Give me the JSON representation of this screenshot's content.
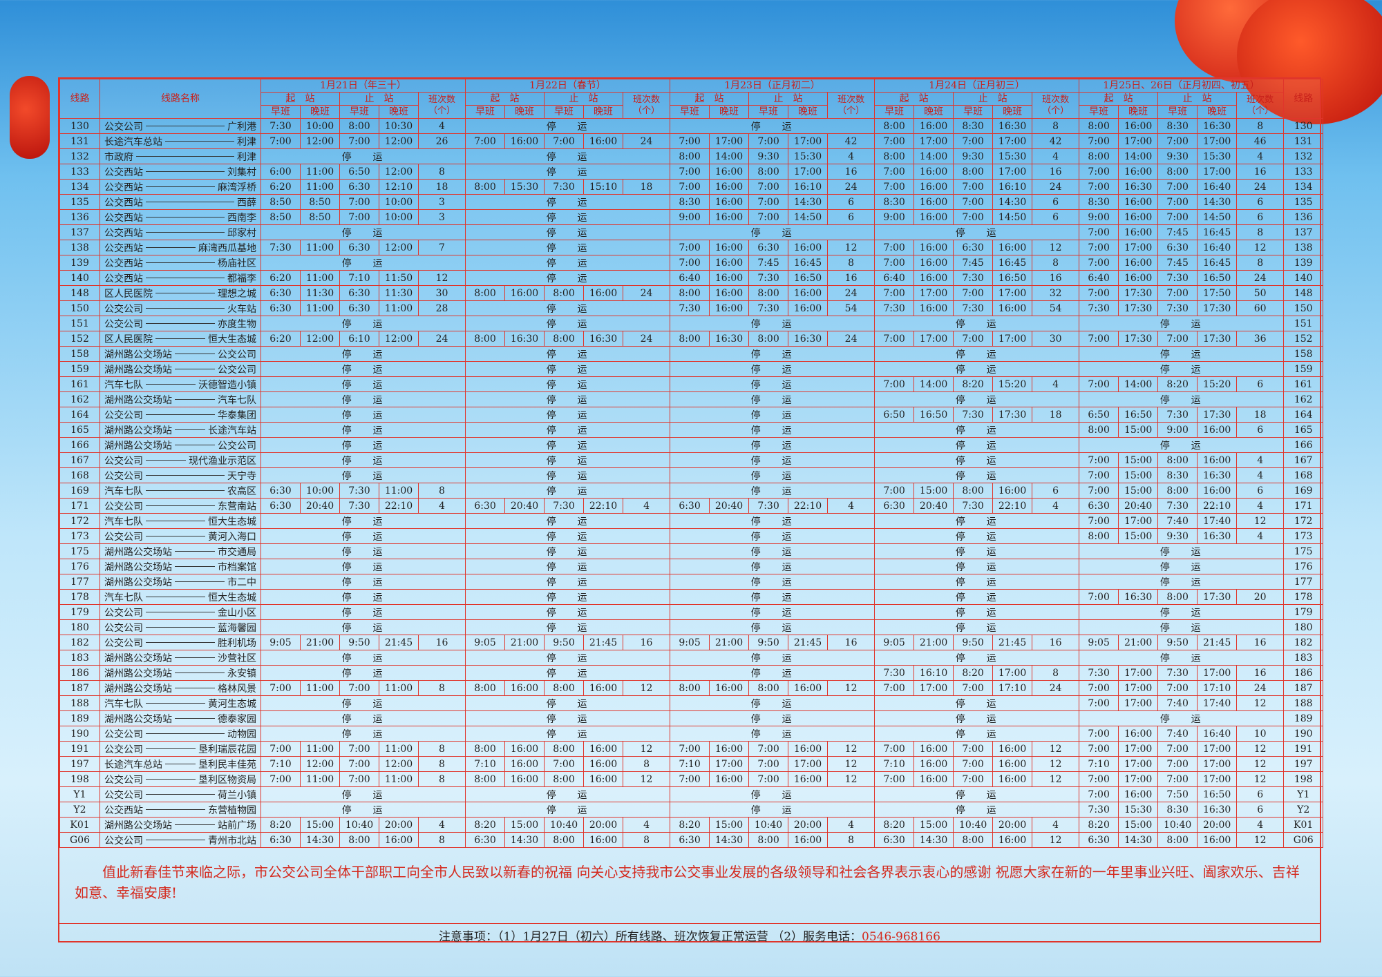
{
  "header": {
    "route": "线路",
    "name": "线路名称",
    "dates": [
      "1月21日（年三十）",
      "1月22日（春节）",
      "1月23日（正月初二）",
      "1月24日（正月初三）",
      "1月25日、26日（正月初四、初五）"
    ],
    "start": "起　站",
    "end": "止　站",
    "count": "班次数（个）",
    "early": "早班",
    "late": "晚班"
  },
  "table": {
    "rows": [
      [
        "130",
        "公交公司",
        "广利港",
        [
          "7:30",
          "10:00",
          "8:00",
          "10:30",
          "4"
        ],
        "停运",
        "停运",
        [
          "8:00",
          "16:00",
          "8:30",
          "16:30",
          "8"
        ],
        [
          "8:00",
          "16:00",
          "8:30",
          "16:30",
          "8"
        ]
      ],
      [
        "131",
        "长途汽车总站",
        "利津",
        [
          "7:00",
          "12:00",
          "7:00",
          "12:00",
          "26"
        ],
        [
          "7:00",
          "16:00",
          "7:00",
          "16:00",
          "24"
        ],
        [
          "7:00",
          "17:00",
          "7:00",
          "17:00",
          "42"
        ],
        [
          "7:00",
          "17:00",
          "7:00",
          "17:00",
          "42"
        ],
        [
          "7:00",
          "17:00",
          "7:00",
          "17:00",
          "46"
        ]
      ],
      [
        "132",
        "市政府",
        "利津",
        "停运",
        "停运",
        [
          "8:00",
          "14:00",
          "9:30",
          "15:30",
          "4"
        ],
        [
          "8:00",
          "14:00",
          "9:30",
          "15:30",
          "4"
        ],
        [
          "8:00",
          "14:00",
          "9:30",
          "15:30",
          "4"
        ]
      ],
      [
        "133",
        "公交西站",
        "刘集村",
        [
          "6:00",
          "11:00",
          "6:50",
          "12:00",
          "8"
        ],
        "停运",
        [
          "7:00",
          "16:00",
          "8:00",
          "17:00",
          "16"
        ],
        [
          "7:00",
          "16:00",
          "8:00",
          "17:00",
          "16"
        ],
        [
          "7:00",
          "16:00",
          "8:00",
          "17:00",
          "16"
        ]
      ],
      [
        "134",
        "公交西站",
        "麻湾浮桥",
        [
          "6:20",
          "11:00",
          "6:30",
          "12:10",
          "18"
        ],
        [
          "8:00",
          "15:30",
          "7:30",
          "15:10",
          "18"
        ],
        [
          "7:00",
          "16:00",
          "7:00",
          "16:10",
          "24"
        ],
        [
          "7:00",
          "16:00",
          "7:00",
          "16:10",
          "24"
        ],
        [
          "7:00",
          "16:30",
          "7:00",
          "16:40",
          "24"
        ]
      ],
      [
        "135",
        "公交西站",
        "西薛",
        [
          "8:50",
          "8:50",
          "7:00",
          "10:00",
          "3"
        ],
        "停运",
        [
          "8:30",
          "16:00",
          "7:00",
          "14:30",
          "6"
        ],
        [
          "8:30",
          "16:00",
          "7:00",
          "14:30",
          "6"
        ],
        [
          "8:30",
          "16:00",
          "7:00",
          "14:30",
          "6"
        ]
      ],
      [
        "136",
        "公交西站",
        "西南李",
        [
          "8:50",
          "8:50",
          "7:00",
          "10:00",
          "3"
        ],
        "停运",
        [
          "9:00",
          "16:00",
          "7:00",
          "14:50",
          "6"
        ],
        [
          "9:00",
          "16:00",
          "7:00",
          "14:50",
          "6"
        ],
        [
          "9:00",
          "16:00",
          "7:00",
          "14:50",
          "6"
        ]
      ],
      [
        "137",
        "公交西站",
        "邱家村",
        "停运",
        "停运",
        "停运",
        "停运",
        [
          "7:00",
          "16:00",
          "7:45",
          "16:45",
          "8"
        ]
      ],
      [
        "138",
        "公交西站",
        "麻湾西瓜基地",
        [
          "7:30",
          "11:00",
          "6:30",
          "12:00",
          "7"
        ],
        "停运",
        [
          "7:00",
          "16:00",
          "6:30",
          "16:00",
          "12"
        ],
        [
          "7:00",
          "16:00",
          "6:30",
          "16:00",
          "12"
        ],
        [
          "7:00",
          "17:00",
          "6:30",
          "16:40",
          "12"
        ]
      ],
      [
        "139",
        "公交西站",
        "杨庙社区",
        "停运",
        "停运",
        [
          "7:00",
          "16:00",
          "7:45",
          "16:45",
          "8"
        ],
        [
          "7:00",
          "16:00",
          "7:45",
          "16:45",
          "8"
        ],
        [
          "7:00",
          "16:00",
          "7:45",
          "16:45",
          "8"
        ]
      ],
      [
        "140",
        "公交西站",
        "都福李",
        [
          "6:20",
          "11:00",
          "7:10",
          "11:50",
          "12"
        ],
        "停运",
        [
          "6:40",
          "16:00",
          "7:30",
          "16:50",
          "16"
        ],
        [
          "6:40",
          "16:00",
          "7:30",
          "16:50",
          "16"
        ],
        [
          "6:40",
          "16:00",
          "7:30",
          "16:50",
          "24"
        ]
      ],
      [
        "148",
        "区人民医院",
        "理想之城",
        [
          "6:30",
          "11:30",
          "6:30",
          "11:30",
          "30"
        ],
        [
          "8:00",
          "16:00",
          "8:00",
          "16:00",
          "24"
        ],
        [
          "8:00",
          "16:00",
          "8:00",
          "16:00",
          "24"
        ],
        [
          "7:00",
          "17:00",
          "7:00",
          "17:00",
          "32"
        ],
        [
          "7:00",
          "17:30",
          "7:00",
          "17:50",
          "50"
        ]
      ],
      [
        "150",
        "公交公司",
        "火车站",
        [
          "6:30",
          "11:00",
          "6:30",
          "11:00",
          "28"
        ],
        "停运",
        [
          "7:30",
          "16:00",
          "7:30",
          "16:00",
          "54"
        ],
        [
          "7:30",
          "16:00",
          "7:30",
          "16:00",
          "54"
        ],
        [
          "7:30",
          "17:30",
          "7:30",
          "17:30",
          "60"
        ]
      ],
      [
        "151",
        "公交公司",
        "亦度生物",
        "停运",
        "停运",
        "停运",
        "停运",
        "停运"
      ],
      [
        "152",
        "区人民医院",
        "恒大生态城",
        [
          "6:20",
          "12:00",
          "6:10",
          "12:00",
          "24"
        ],
        [
          "8:00",
          "16:30",
          "8:00",
          "16:30",
          "24"
        ],
        [
          "8:00",
          "16:30",
          "8:00",
          "16:30",
          "24"
        ],
        [
          "7:00",
          "17:00",
          "7:00",
          "17:00",
          "30"
        ],
        [
          "7:00",
          "17:30",
          "7:00",
          "17:30",
          "36"
        ]
      ],
      [
        "158",
        "湖州路公交场站",
        "公交公司",
        "停运",
        "停运",
        "停运",
        "停运",
        "停运"
      ],
      [
        "159",
        "湖州路公交场站",
        "公交公司",
        "停运",
        "停运",
        "停运",
        "停运",
        "停运"
      ],
      [
        "161",
        "汽车七队",
        "沃德智造小镇",
        "停运",
        "停运",
        "停运",
        [
          "7:00",
          "14:00",
          "8:20",
          "15:20",
          "4"
        ],
        [
          "7:00",
          "14:00",
          "8:20",
          "15:20",
          "6"
        ]
      ],
      [
        "162",
        "湖州路公交场站",
        "汽车七队",
        "停运",
        "停运",
        "停运",
        "停运",
        "停运"
      ],
      [
        "164",
        "公交公司",
        "华泰集团",
        "停运",
        "停运",
        "停运",
        [
          "6:50",
          "16:50",
          "7:30",
          "17:30",
          "18"
        ],
        [
          "6:50",
          "16:50",
          "7:30",
          "17:30",
          "18"
        ]
      ],
      [
        "165",
        "湖州路公交场站",
        "长途汽车站",
        "停运",
        "停运",
        "停运",
        "停运",
        [
          "8:00",
          "15:00",
          "9:00",
          "16:00",
          "6"
        ]
      ],
      [
        "166",
        "湖州路公交场站",
        "公交公司",
        "停运",
        "停运",
        "停运",
        "停运",
        "停运"
      ],
      [
        "167",
        "公交公司",
        "现代渔业示范区",
        "停运",
        "停运",
        "停运",
        "停运",
        [
          "7:00",
          "15:00",
          "8:00",
          "16:00",
          "4"
        ]
      ],
      [
        "168",
        "公交公司",
        "天宁寺",
        "停运",
        "停运",
        "停运",
        "停运",
        [
          "7:00",
          "15:00",
          "8:30",
          "16:30",
          "4"
        ]
      ],
      [
        "169",
        "汽车七队",
        "农高区",
        [
          "6:30",
          "10:00",
          "7:30",
          "11:00",
          "8"
        ],
        "停运",
        "停运",
        [
          "7:00",
          "15:00",
          "8:00",
          "16:00",
          "6"
        ],
        [
          "7:00",
          "15:00",
          "8:00",
          "16:00",
          "6"
        ]
      ],
      [
        "171",
        "公交公司",
        "东营南站",
        [
          "6:30",
          "20:40",
          "7:30",
          "22:10",
          "4"
        ],
        [
          "6:30",
          "20:40",
          "7:30",
          "22:10",
          "4"
        ],
        [
          "6:30",
          "20:40",
          "7:30",
          "22:10",
          "4"
        ],
        [
          "6:30",
          "20:40",
          "7:30",
          "22:10",
          "4"
        ],
        [
          "6:30",
          "20:40",
          "7:30",
          "22:10",
          "4"
        ]
      ],
      [
        "172",
        "汽车七队",
        "恒大生态城",
        "停运",
        "停运",
        "停运",
        "停运",
        [
          "7:00",
          "17:00",
          "7:40",
          "17:40",
          "12"
        ]
      ],
      [
        "173",
        "公交公司",
        "黄河入海口",
        "停运",
        "停运",
        "停运",
        "停运",
        [
          "8:00",
          "15:00",
          "9:30",
          "16:30",
          "4"
        ]
      ],
      [
        "175",
        "湖州路公交场站",
        "市交通局",
        "停运",
        "停运",
        "停运",
        "停运",
        "停运"
      ],
      [
        "176",
        "湖州路公交场站",
        "市档案馆",
        "停运",
        "停运",
        "停运",
        "停运",
        "停运"
      ],
      [
        "177",
        "湖州路公交场站",
        "市二中",
        "停运",
        "停运",
        "停运",
        "停运",
        "停运"
      ],
      [
        "178",
        "汽车七队",
        "恒大生态城",
        "停运",
        "停运",
        "停运",
        "停运",
        [
          "7:00",
          "16:30",
          "8:00",
          "17:30",
          "20"
        ]
      ],
      [
        "179",
        "公交公司",
        "金山小区",
        "停运",
        "停运",
        "停运",
        "停运",
        "停运"
      ],
      [
        "180",
        "公交公司",
        "蓝海馨园",
        "停运",
        "停运",
        "停运",
        "停运",
        "停运"
      ],
      [
        "182",
        "公交公司",
        "胜利机场",
        [
          "9:05",
          "21:00",
          "9:50",
          "21:45",
          "16"
        ],
        [
          "9:05",
          "21:00",
          "9:50",
          "21:45",
          "16"
        ],
        [
          "9:05",
          "21:00",
          "9:50",
          "21:45",
          "16"
        ],
        [
          "9:05",
          "21:00",
          "9:50",
          "21:45",
          "16"
        ],
        [
          "9:05",
          "21:00",
          "9:50",
          "21:45",
          "16"
        ]
      ],
      [
        "183",
        "湖州路公交场站",
        "沙营社区",
        "停运",
        "停运",
        "停运",
        "停运",
        "停运"
      ],
      [
        "186",
        "湖州路公交场站",
        "永安镇",
        "停运",
        "停运",
        "停运",
        [
          "7:30",
          "16:10",
          "8:20",
          "17:00",
          "8"
        ],
        [
          "7:30",
          "17:00",
          "7:30",
          "17:00",
          "16"
        ]
      ],
      [
        "187",
        "湖州路公交场站",
        "格林风景",
        [
          "7:00",
          "11:00",
          "7:00",
          "11:00",
          "8"
        ],
        [
          "8:00",
          "16:00",
          "8:00",
          "16:00",
          "12"
        ],
        [
          "8:00",
          "16:00",
          "8:00",
          "16:00",
          "12"
        ],
        [
          "7:00",
          "17:00",
          "7:00",
          "17:10",
          "24"
        ],
        [
          "7:00",
          "17:00",
          "7:00",
          "17:10",
          "24"
        ]
      ],
      [
        "188",
        "汽车七队",
        "黄河生态城",
        "停运",
        "停运",
        "停运",
        "停运",
        [
          "7:00",
          "17:00",
          "7:40",
          "17:40",
          "12"
        ]
      ],
      [
        "189",
        "湖州路公交场站",
        "德泰家园",
        "停运",
        "停运",
        "停运",
        "停运",
        "停运"
      ],
      [
        "190",
        "公交公司",
        "动物园",
        "停运",
        "停运",
        "停运",
        "停运",
        [
          "7:00",
          "16:00",
          "7:40",
          "16:40",
          "10"
        ]
      ],
      [
        "191",
        "公交公司",
        "垦利瑞辰花园",
        [
          "7:00",
          "11:00",
          "7:00",
          "11:00",
          "8"
        ],
        [
          "8:00",
          "16:00",
          "8:00",
          "16:00",
          "12"
        ],
        [
          "7:00",
          "16:00",
          "7:00",
          "16:00",
          "12"
        ],
        [
          "7:00",
          "16:00",
          "7:00",
          "16:00",
          "12"
        ],
        [
          "7:00",
          "17:00",
          "7:00",
          "17:00",
          "12"
        ]
      ],
      [
        "197",
        "长途汽车总站",
        "垦利民丰佳苑",
        [
          "7:10",
          "12:00",
          "7:00",
          "12:00",
          "8"
        ],
        [
          "7:10",
          "16:00",
          "7:00",
          "16:00",
          "8"
        ],
        [
          "7:10",
          "17:00",
          "7:00",
          "17:00",
          "12"
        ],
        [
          "7:10",
          "16:00",
          "7:00",
          "16:00",
          "12"
        ],
        [
          "7:10",
          "17:00",
          "7:00",
          "17:00",
          "12"
        ]
      ],
      [
        "198",
        "公交公司",
        "垦利区物资局",
        [
          "7:00",
          "11:00",
          "7:00",
          "11:00",
          "8"
        ],
        [
          "8:00",
          "16:00",
          "8:00",
          "16:00",
          "12"
        ],
        [
          "7:00",
          "16:00",
          "7:00",
          "16:00",
          "12"
        ],
        [
          "7:00",
          "16:00",
          "7:00",
          "16:00",
          "12"
        ],
        [
          "7:00",
          "17:00",
          "7:00",
          "17:00",
          "12"
        ]
      ],
      [
        "Y1",
        "公交公司",
        "荷兰小镇",
        "停运",
        "停运",
        "停运",
        "停运",
        [
          "7:00",
          "16:00",
          "7:50",
          "16:50",
          "6"
        ]
      ],
      [
        "Y2",
        "公交西站",
        "东营植物园",
        "停运",
        "停运",
        "停运",
        "停运",
        [
          "7:30",
          "15:30",
          "8:30",
          "16:30",
          "6"
        ]
      ],
      [
        "K01",
        "湖州路公交场站",
        "站前广场",
        [
          "8:20",
          "15:00",
          "10:40",
          "20:00",
          "4"
        ],
        [
          "8:20",
          "15:00",
          "10:40",
          "20:00",
          "4"
        ],
        [
          "8:20",
          "15:00",
          "10:40",
          "20:00",
          "4"
        ],
        [
          "8:20",
          "15:00",
          "10:40",
          "20:00",
          "4"
        ],
        [
          "8:20",
          "15:00",
          "10:40",
          "20:00",
          "4"
        ]
      ],
      [
        "G06",
        "公交公司",
        "青州市北站",
        [
          "6:30",
          "14:30",
          "8:00",
          "16:00",
          "8"
        ],
        [
          "6:30",
          "14:30",
          "8:00",
          "16:00",
          "8"
        ],
        [
          "6:30",
          "14:30",
          "8:00",
          "16:00",
          "8"
        ],
        [
          "6:30",
          "14:30",
          "8:00",
          "16:00",
          "12"
        ],
        [
          "6:30",
          "14:30",
          "8:00",
          "16:00",
          "12"
        ]
      ]
    ]
  },
  "footer": {
    "greeting": "值此新春佳节来临之际，市公交公司全体干部职工向全市人民致以新春的祝福 向关心支持我市公交事业发展的各级领导和社会各界表示衷心的感谢 祝愿大家在新的一年里事业兴旺、阖家欢乐、吉祥如意、幸福安康!",
    "notice": "注意事项：（1）1月27日（初六）所有线路、班次恢复正常运营 （2）服务电话：",
    "phone": "0546-968166"
  }
}
